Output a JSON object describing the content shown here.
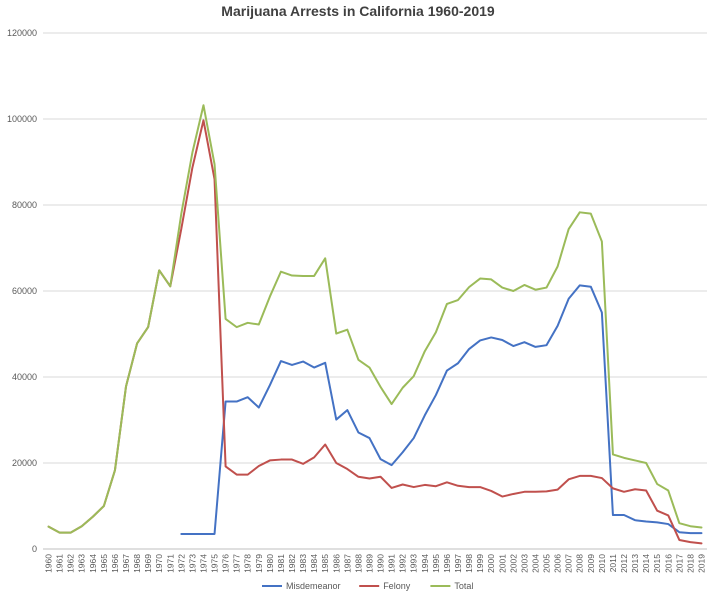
{
  "chart_data": {
    "type": "line",
    "title": "Marijuana Arrests in California 1960-2019",
    "xlabel": "",
    "ylabel": "",
    "ylim": [
      0,
      120000
    ],
    "yticks": [
      "0",
      "20000",
      "40000",
      "60000",
      "80000",
      "100000",
      "120000"
    ],
    "grid": true,
    "legend_position": "bottom",
    "x": [
      1960,
      1961,
      1962,
      1963,
      1964,
      1965,
      1966,
      1967,
      1968,
      1969,
      1970,
      1971,
      1972,
      1973,
      1974,
      1975,
      1976,
      1977,
      1978,
      1979,
      1980,
      1981,
      1982,
      1983,
      1984,
      1985,
      1986,
      1987,
      1988,
      1989,
      1990,
      1991,
      1992,
      1993,
      1994,
      1995,
      1996,
      1997,
      1998,
      1999,
      2000,
      2001,
      2002,
      2003,
      2004,
      2005,
      2006,
      2007,
      2008,
      2009,
      2010,
      2011,
      2012,
      2013,
      2014,
      2015,
      2016,
      2017,
      2018,
      2019
    ],
    "series": [
      {
        "name": "Misdemeanor",
        "color": "#4472c4",
        "values": [
          null,
          null,
          null,
          null,
          null,
          null,
          null,
          null,
          null,
          null,
          null,
          null,
          3500,
          3500,
          3500,
          3500,
          34300,
          34300,
          35300,
          32900,
          38100,
          43700,
          42800,
          43600,
          42200,
          43300,
          30100,
          32300,
          27100,
          25800,
          20900,
          19500,
          22500,
          25800,
          31100,
          35800,
          41500,
          43200,
          46500,
          48500,
          49200,
          48600,
          47200,
          48100,
          47000,
          47400,
          51900,
          58200,
          61300,
          61000,
          55000,
          7900,
          7900,
          6700,
          6400,
          6200,
          5800,
          3900,
          3700,
          3700
        ]
      },
      {
        "name": "Felony",
        "color": "#c0504d",
        "values": [
          5200,
          3800,
          3800,
          5300,
          7500,
          10000,
          18300,
          37800,
          47800,
          51600,
          64800,
          61100,
          74500,
          88700,
          99700,
          86000,
          19200,
          17300,
          17300,
          19300,
          20600,
          20800,
          20800,
          19800,
          21300,
          24300,
          20000,
          18600,
          16800,
          16400,
          16800,
          14200,
          15000,
          14400,
          14900,
          14600,
          15500,
          14700,
          14400,
          14400,
          13500,
          12200,
          12800,
          13300,
          13300,
          13400,
          13800,
          16200,
          17000,
          17000,
          16500,
          14100,
          13300,
          13900,
          13600,
          8900,
          7800,
          2100,
          1600,
          1300
        ]
      },
      {
        "name": "Total",
        "color": "#9bbb59",
        "values": [
          5200,
          3800,
          3800,
          5300,
          7500,
          10000,
          18300,
          37800,
          47800,
          51600,
          64800,
          61100,
          78000,
          92200,
          103200,
          89500,
          53500,
          51600,
          52600,
          52200,
          58700,
          64500,
          63600,
          63500,
          63500,
          67600,
          50100,
          51000,
          44000,
          42200,
          37700,
          33700,
          37500,
          40200,
          46000,
          50400,
          57000,
          57900,
          60900,
          62900,
          62700,
          60800,
          60000,
          61400,
          60300,
          60800,
          65700,
          74400,
          78300,
          78000,
          71500,
          22000,
          21200,
          20600,
          20000,
          15100,
          13600,
          6000,
          5300,
          5000
        ]
      }
    ]
  }
}
